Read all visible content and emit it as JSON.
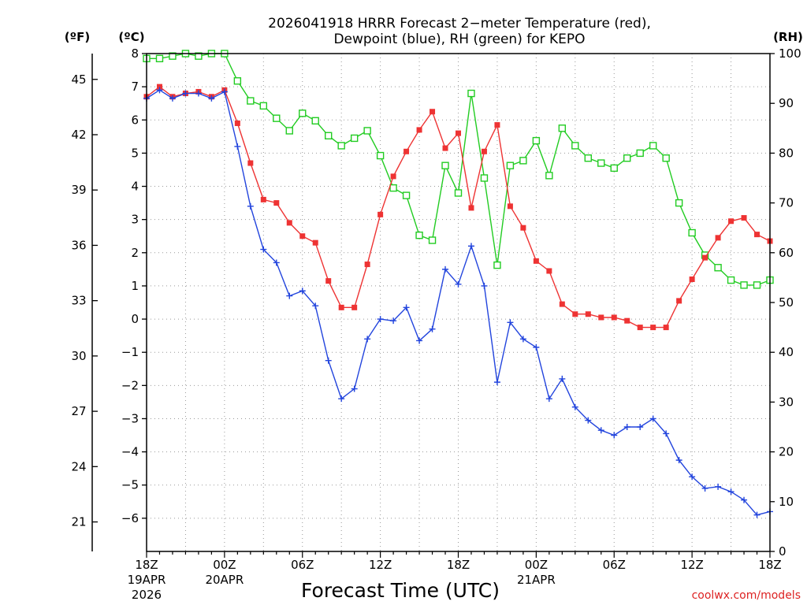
{
  "chart_data": {
    "type": "line",
    "title": {
      "line1": "2026041918 HRRR Forecast 2−meter Temperature (red),",
      "line2": "Dewpoint (blue), RH (green) for KEPO"
    },
    "axis_labels": {
      "fahrenheit": "(ºF)",
      "celsius": "(ºC)",
      "rh": "(RH)"
    },
    "xlabel": "Forecast Time (UTC)",
    "watermark": "coolwx.com/models",
    "xlim": [
      0,
      48
    ],
    "ylim_celsius": [
      -7,
      8
    ],
    "ylim_rh": [
      0,
      100
    ],
    "x_ticks": [
      {
        "x": 0,
        "label": "18Z",
        "sub1": "19APR",
        "sub2": "2026"
      },
      {
        "x": 6,
        "label": "00Z",
        "sub1": "20APR",
        "sub2": ""
      },
      {
        "x": 12,
        "label": "06Z",
        "sub1": "",
        "sub2": ""
      },
      {
        "x": 18,
        "label": "12Z",
        "sub1": "",
        "sub2": ""
      },
      {
        "x": 24,
        "label": "18Z",
        "sub1": "",
        "sub2": ""
      },
      {
        "x": 30,
        "label": "00Z",
        "sub1": "21APR",
        "sub2": ""
      },
      {
        "x": 36,
        "label": "06Z",
        "sub1": "",
        "sub2": ""
      },
      {
        "x": 42,
        "label": "12Z",
        "sub1": "",
        "sub2": ""
      },
      {
        "x": 48,
        "label": "18Z",
        "sub1": "",
        "sub2": ""
      }
    ],
    "celsius_ticks": [
      8,
      7,
      6,
      5,
      4,
      3,
      2,
      1,
      0,
      -1,
      -2,
      -3,
      -4,
      -5,
      -6
    ],
    "fahrenheit_ticks": [
      45,
      42,
      39,
      36,
      33,
      30,
      27,
      24,
      21
    ],
    "rh_ticks": [
      100,
      90,
      80,
      70,
      60,
      50,
      40,
      30,
      20,
      10,
      0
    ],
    "colors": {
      "temperature": "#ee3333",
      "dewpoint": "#2244dd",
      "rh": "#22cc22",
      "grid": "#999999",
      "watermark": "#dd2222"
    },
    "series": [
      {
        "key": "temperature",
        "unit": "celsius",
        "values": [
          6.7,
          7.0,
          6.7,
          6.8,
          6.85,
          6.7,
          6.9,
          5.9,
          4.7,
          3.6,
          3.5,
          2.9,
          2.5,
          2.3,
          1.15,
          0.35,
          0.35,
          1.65,
          3.15,
          4.3,
          5.05,
          5.7,
          6.25,
          5.15,
          5.6,
          3.35,
          5.05,
          5.85,
          3.4,
          2.75,
          1.75,
          1.45,
          0.45,
          0.15,
          0.15,
          0.05,
          0.05,
          -0.05,
          -0.25,
          -0.25,
          -0.25,
          0.55,
          1.2,
          1.85,
          2.45,
          2.95,
          3.05,
          2.55,
          2.35
        ]
      },
      {
        "key": "dewpoint",
        "unit": "celsius",
        "values": [
          6.65,
          6.9,
          6.65,
          6.8,
          6.8,
          6.65,
          6.85,
          5.2,
          3.4,
          2.1,
          1.7,
          0.7,
          0.85,
          0.4,
          -1.25,
          -2.4,
          -2.1,
          -0.6,
          0.0,
          -0.05,
          0.35,
          -0.65,
          -0.3,
          1.5,
          1.05,
          2.2,
          1.0,
          -1.9,
          -0.1,
          -0.6,
          -0.85,
          -2.4,
          -1.8,
          -2.65,
          -3.05,
          -3.35,
          -3.5,
          -3.25,
          -3.25,
          -3.0,
          -3.45,
          -4.25,
          -4.75,
          -5.1,
          -5.05,
          -5.2,
          -5.45,
          -5.9,
          -5.8
        ]
      },
      {
        "key": "rh",
        "unit": "percent",
        "values": [
          99,
          99,
          99.5,
          100,
          99.5,
          100,
          100,
          94.5,
          90.5,
          89.5,
          87,
          84.5,
          88,
          86.5,
          83.5,
          81.5,
          83,
          84.5,
          79.5,
          73,
          71.5,
          63.5,
          62.5,
          77.5,
          72,
          92,
          75,
          57.5,
          77.5,
          78.5,
          82.5,
          75.5,
          85,
          81.5,
          79,
          78,
          77,
          79,
          80,
          81.5,
          79,
          70,
          64,
          59.5,
          57,
          54.5,
          53.5,
          53.5,
          54.5
        ]
      }
    ]
  }
}
